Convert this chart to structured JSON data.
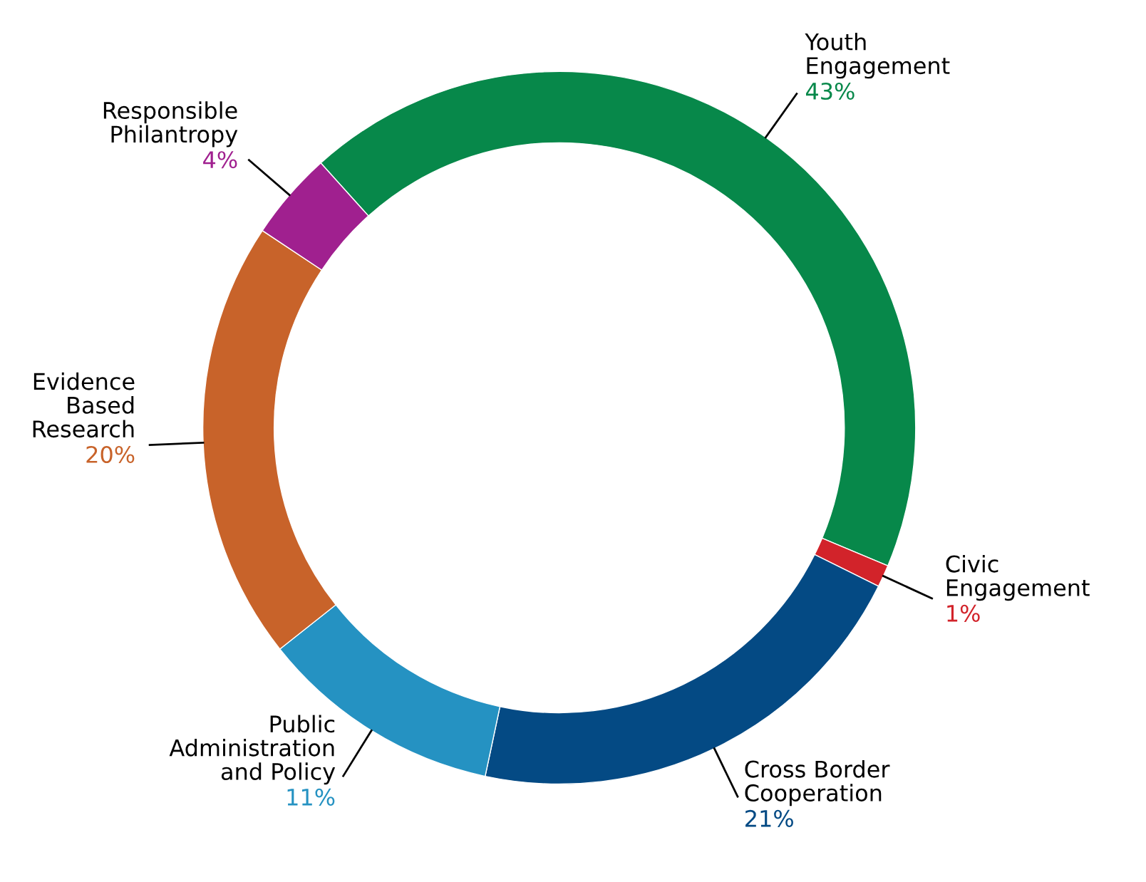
{
  "chart_data": {
    "type": "donut",
    "categories": [
      "Youth\nEngagement",
      "Civic\nEngagement",
      "Cross Border\nCooperation",
      "Public\nAdministration\nand Policy",
      "Evidence\nBased\nResearch",
      "Responsible\nPhilantropy"
    ],
    "values": [
      43,
      1,
      21,
      11,
      20,
      4
    ],
    "value_labels": [
      "43%",
      "1%",
      "21%",
      "11%",
      "20%",
      "4%"
    ],
    "colors": [
      "#07884a",
      "#d2232a",
      "#044a84",
      "#2592c2",
      "#c8632a",
      "#a0208f"
    ]
  }
}
